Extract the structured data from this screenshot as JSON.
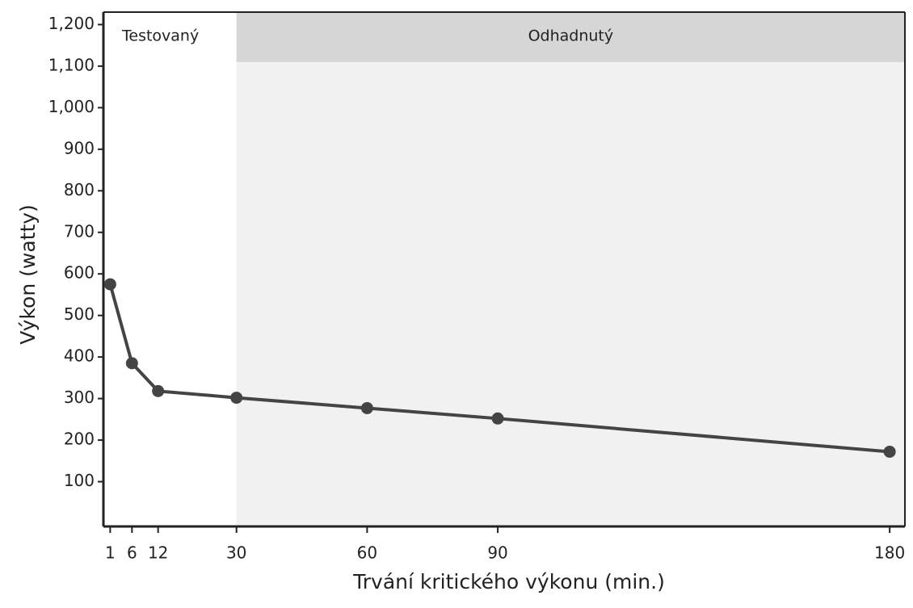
{
  "chart_data": {
    "type": "line",
    "xlabel": "Trvání kritického výkonu (min.)",
    "ylabel": "Výkon (watty)",
    "x": [
      1,
      6,
      12,
      30,
      60,
      90,
      180
    ],
    "series": [
      {
        "color": "#444444",
        "values": [
          575,
          385,
          318,
          302,
          277,
          252,
          172
        ]
      }
    ],
    "xlim": [
      0,
      183.5
    ],
    "ylim": [
      0,
      1230
    ],
    "xticks": [
      1,
      6,
      12,
      30,
      60,
      90,
      180
    ],
    "yticks": [
      100,
      200,
      300,
      400,
      500,
      600,
      700,
      800,
      900,
      {
        "value": 1000,
        "label": "1,000"
      },
      {
        "value": 1100,
        "label": "1,100"
      },
      {
        "value": 1200,
        "label": "1,200"
      }
    ],
    "regions": [
      {
        "label": "Testovaný",
        "from": 0
      },
      {
        "label": "Odhadnutý",
        "from": 30,
        "band_from": 1110
      }
    ]
  }
}
